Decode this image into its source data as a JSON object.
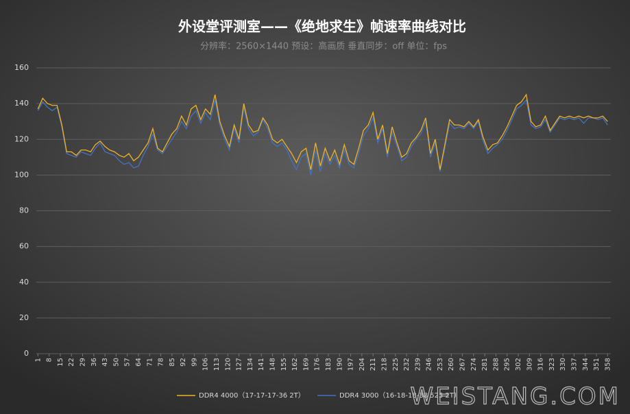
{
  "chart_data": {
    "type": "line",
    "title": "外设堂评测室——《绝地求生》帧速率曲线对比",
    "subtitle": "分辨率：2560×1440  预设：高画质  垂直同步：off    单位：fps",
    "watermark": "WEISTANG.COM",
    "x": [
      1,
      4,
      7,
      10,
      13,
      16,
      19,
      22,
      25,
      28,
      31,
      34,
      37,
      40,
      43,
      46,
      49,
      52,
      55,
      58,
      61,
      64,
      67,
      70,
      73,
      76,
      79,
      82,
      85,
      88,
      91,
      94,
      97,
      100,
      103,
      106,
      109,
      112,
      115,
      118,
      121,
      124,
      127,
      130,
      133,
      136,
      139,
      142,
      145,
      148,
      151,
      154,
      157,
      160,
      163,
      166,
      169,
      172,
      175,
      178,
      181,
      184,
      187,
      190,
      193,
      196,
      199,
      202,
      205,
      208,
      211,
      214,
      217,
      220,
      223,
      226,
      229,
      232,
      235,
      238,
      241,
      244,
      247,
      250,
      253,
      256,
      259,
      262,
      265,
      268,
      271,
      274,
      277,
      280,
      283,
      286,
      289,
      292,
      295,
      298,
      301,
      304,
      307,
      310,
      313,
      316,
      319,
      322,
      325,
      328,
      331,
      334,
      337,
      340,
      343,
      346,
      349,
      352,
      355,
      358
    ],
    "series": [
      {
        "name": "DDR4 4000（17-17-17-36 2T）",
        "color": "#f0b323",
        "values": [
          137,
          143,
          140,
          139,
          139,
          128,
          113,
          113,
          111,
          114,
          114,
          113,
          117,
          119,
          116,
          114,
          113,
          111,
          110,
          112,
          108,
          110,
          114,
          118,
          126,
          115,
          113,
          118,
          123,
          126,
          133,
          128,
          137,
          139,
          131,
          137,
          134,
          145,
          130,
          122,
          116,
          128,
          120,
          140,
          128,
          124,
          125,
          132,
          128,
          120,
          118,
          120,
          116,
          112,
          107,
          113,
          115,
          103,
          118,
          105,
          115,
          108,
          114,
          106,
          117,
          108,
          106,
          115,
          125,
          128,
          135,
          120,
          128,
          112,
          127,
          118,
          110,
          112,
          118,
          121,
          125,
          132,
          112,
          120,
          103,
          117,
          131,
          128,
          128,
          127,
          130,
          127,
          131,
          121,
          114,
          117,
          118,
          122,
          127,
          133,
          139,
          141,
          145,
          130,
          127,
          128,
          133,
          125,
          129,
          133,
          132,
          133,
          132,
          133,
          132,
          133,
          132,
          132,
          133,
          130
        ]
      },
      {
        "name": "DDR4 3000（16-18-18-38 525 2T）",
        "color": "#4472c4",
        "values": [
          136,
          141,
          138,
          136,
          138,
          127,
          112,
          111,
          110,
          113,
          112,
          111,
          115,
          118,
          113,
          112,
          111,
          108,
          106,
          107,
          104,
          105,
          111,
          116,
          123,
          114,
          112,
          116,
          120,
          124,
          130,
          126,
          133,
          136,
          129,
          135,
          131,
          142,
          128,
          120,
          114,
          126,
          118,
          138,
          126,
          122,
          124,
          131,
          126,
          118,
          116,
          118,
          114,
          108,
          103,
          110,
          112,
          100,
          114,
          102,
          112,
          106,
          111,
          104,
          114,
          106,
          104,
          112,
          122,
          126,
          132,
          118,
          126,
          110,
          124,
          116,
          108,
          110,
          116,
          120,
          123,
          130,
          110,
          118,
          102,
          115,
          129,
          126,
          127,
          126,
          129,
          126,
          130,
          119,
          112,
          115,
          117,
          120,
          125,
          131,
          137,
          139,
          142,
          128,
          126,
          127,
          131,
          124,
          128,
          132,
          131,
          132,
          131,
          132,
          129,
          132,
          132,
          131,
          132,
          128
        ]
      }
    ],
    "xlim": [
      0,
      360
    ],
    "xticks": [
      1,
      8,
      15,
      22,
      29,
      36,
      43,
      50,
      57,
      64,
      71,
      78,
      85,
      92,
      99,
      106,
      113,
      120,
      127,
      134,
      141,
      148,
      155,
      162,
      169,
      176,
      183,
      190,
      197,
      204,
      211,
      218,
      225,
      232,
      239,
      246,
      253,
      260,
      267,
      274,
      281,
      288,
      295,
      302,
      309,
      316,
      323,
      330,
      337,
      344,
      351,
      358
    ],
    "ylim": [
      0,
      160
    ],
    "yticks": [
      0,
      20,
      40,
      60,
      80,
      100,
      120,
      140,
      160
    ],
    "grid": true,
    "legend": "bottom"
  }
}
